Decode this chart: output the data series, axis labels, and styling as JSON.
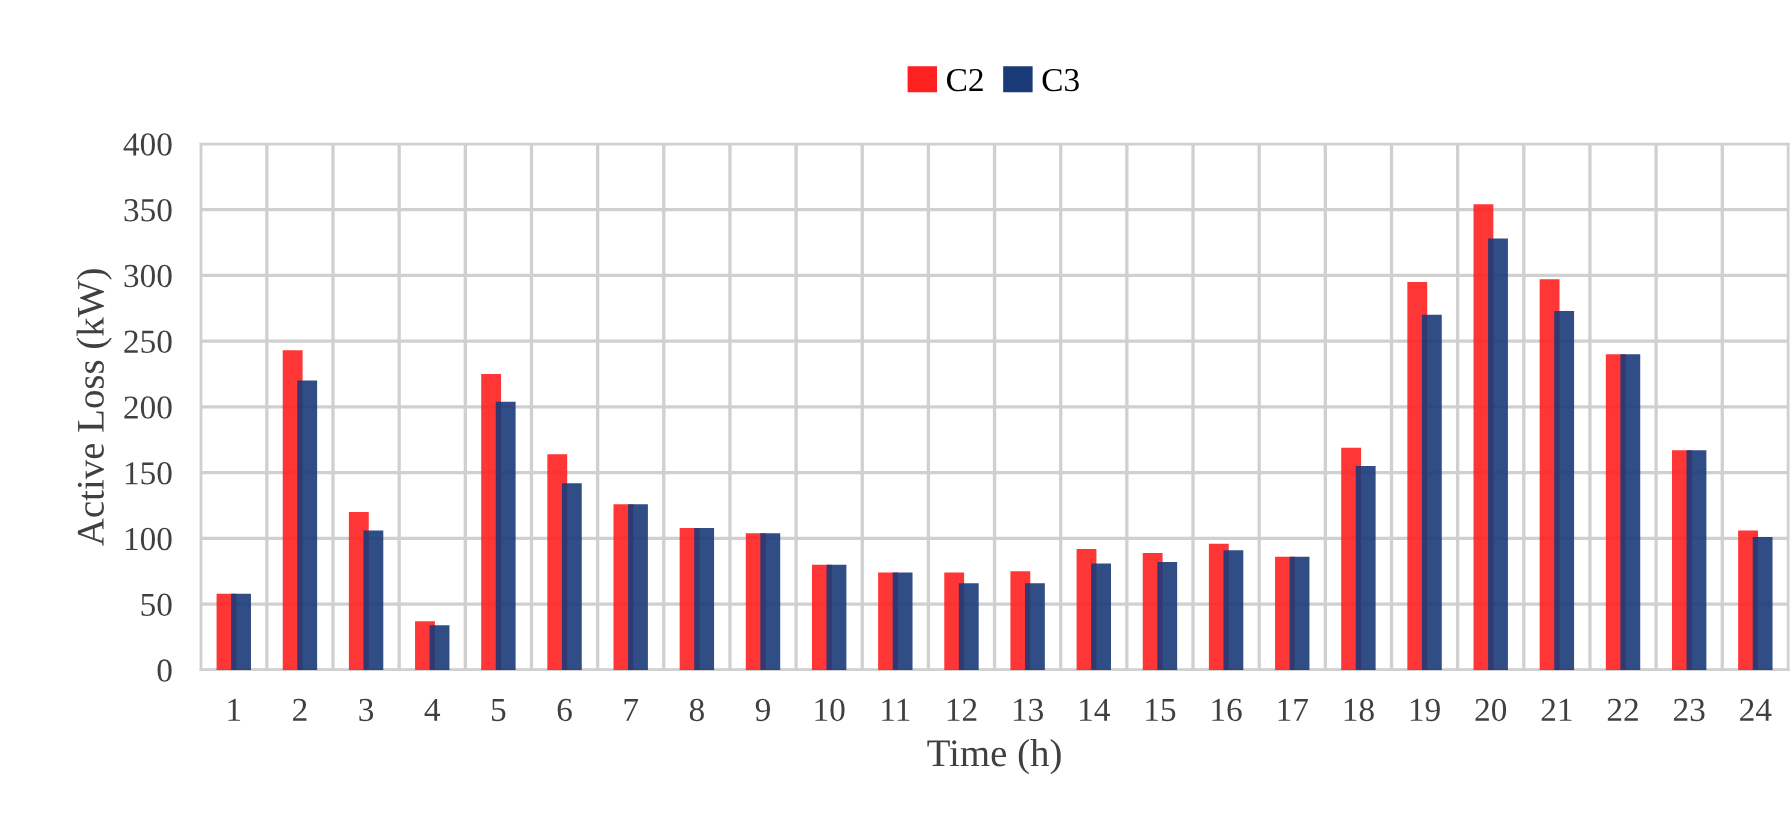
{
  "chart_data": {
    "type": "bar",
    "xlabel": "Time (h)",
    "ylabel": "Active Loss (kW)",
    "categories": [
      "1",
      "2",
      "3",
      "4",
      "5",
      "6",
      "7",
      "8",
      "9",
      "10",
      "11",
      "12",
      "13",
      "14",
      "15",
      "16",
      "17",
      "18",
      "19",
      "20",
      "21",
      "22",
      "23",
      "24"
    ],
    "series": [
      {
        "name": "C2",
        "color": "#ff2020",
        "values": [
          58,
          243,
          120,
          37,
          225,
          164,
          126,
          108,
          104,
          80,
          74,
          74,
          75,
          92,
          89,
          96,
          86,
          169,
          295,
          354,
          297,
          240,
          167,
          106
        ]
      },
      {
        "name": "C3",
        "color": "#1a3a78",
        "values": [
          58,
          220,
          106,
          34,
          204,
          142,
          126,
          108,
          104,
          80,
          74,
          66,
          66,
          81,
          82,
          91,
          86,
          155,
          270,
          328,
          273,
          240,
          167,
          101
        ]
      }
    ],
    "ylim": [
      0,
      400
    ],
    "yticks": [
      0,
      50,
      100,
      150,
      200,
      250,
      300,
      350,
      400
    ],
    "grid": true,
    "legend": "top"
  }
}
